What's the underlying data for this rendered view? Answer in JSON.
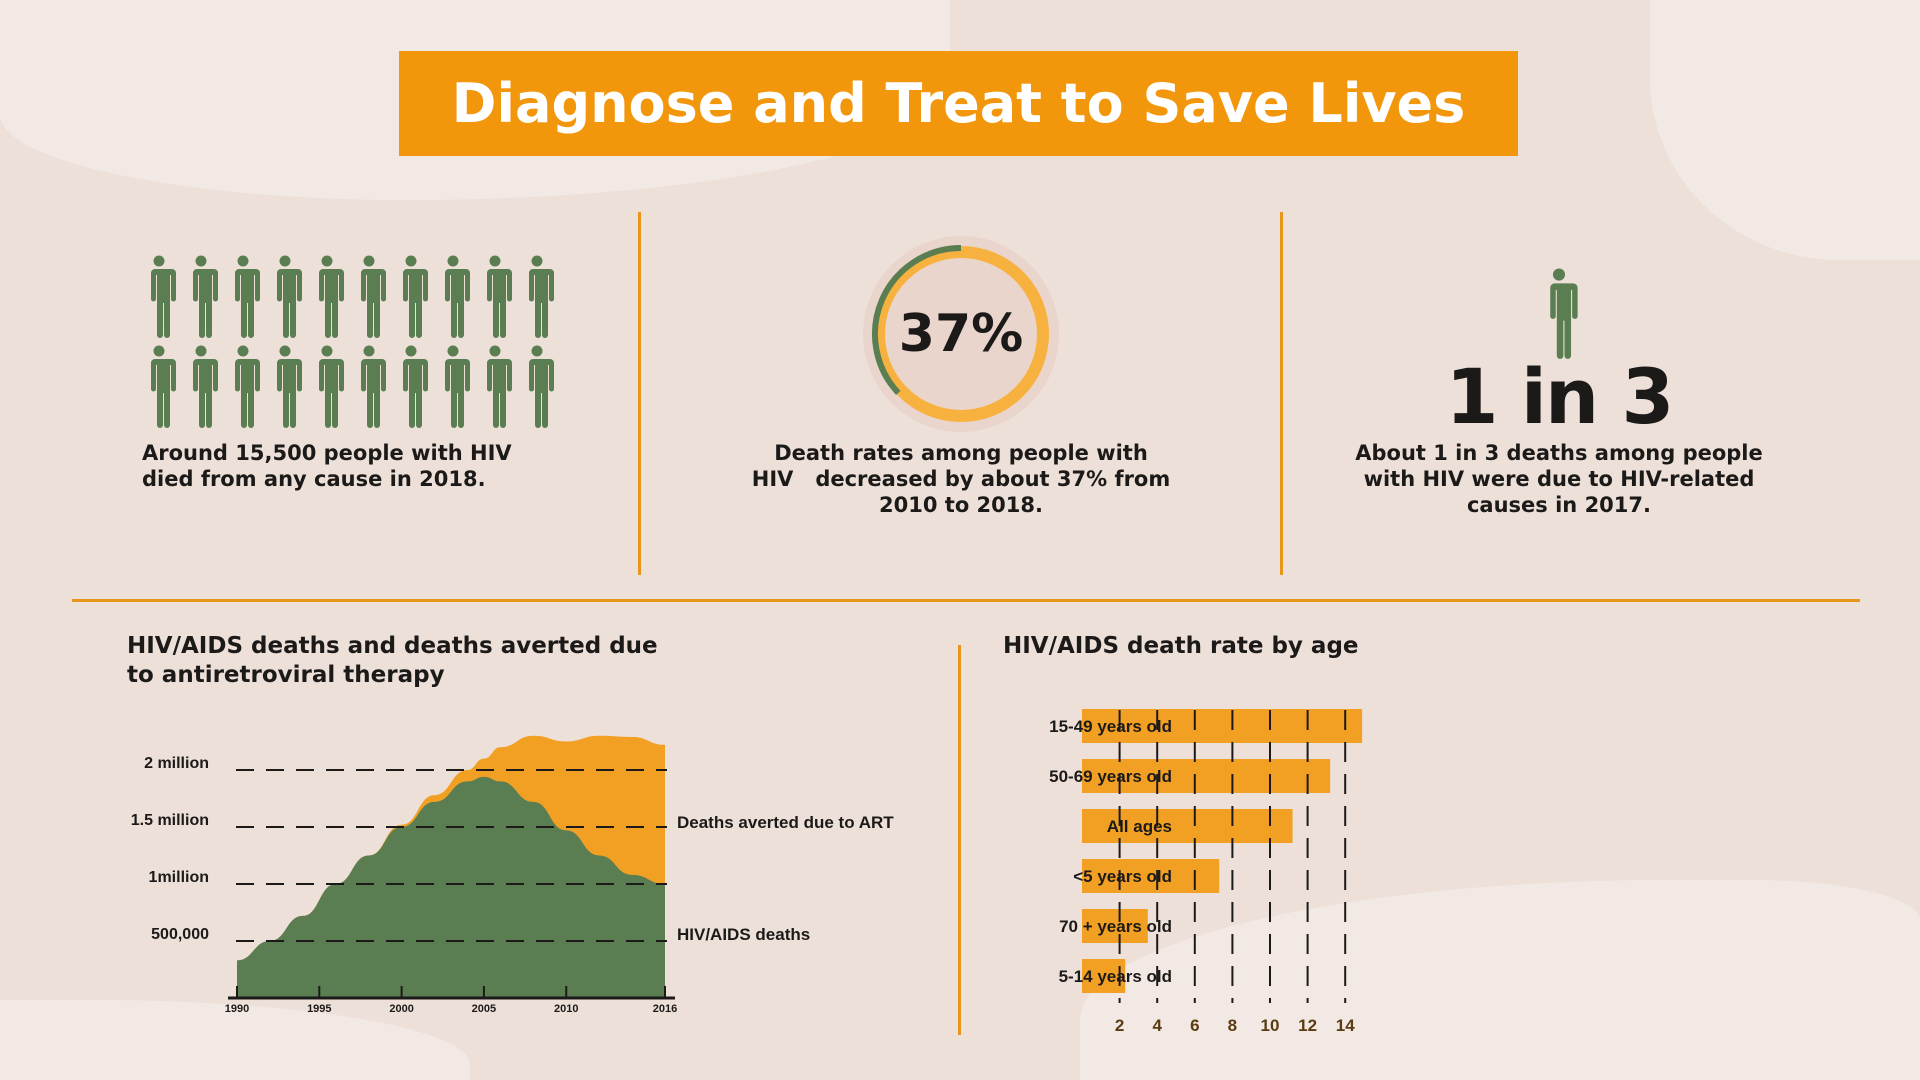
{
  "title": "Diagnose and Treat to Save Lives",
  "colors": {
    "orange": "#f2960c",
    "bar_orange": "#f2a024",
    "green": "#5a7d52",
    "background": "#ede0d9"
  },
  "stats": [
    {
      "icon": "people-icon-grid",
      "icon_count": 20,
      "text_lines": [
        "Around 15,500 people with HIV",
        "died from any cause in 2018."
      ]
    },
    {
      "value": "37%",
      "fraction": 0.37,
      "text_lines": [
        "Death rates among people with",
        "HIV   decreased by about 37% from",
        "2010 to 2018."
      ]
    },
    {
      "icon": "person-icon",
      "value": "1 in 3",
      "text_lines": [
        "About 1 in 3 deaths among people",
        "with HIV were due to HIV-related",
        "causes in 2017."
      ]
    }
  ],
  "chart_data": [
    {
      "type": "area",
      "stacked": true,
      "title_lines": [
        "HIV/AIDS deaths and deaths averted due",
        "to antiretroviral therapy"
      ],
      "x": [
        1990,
        1992,
        1994,
        1996,
        1998,
        2000,
        2002,
        2004,
        2005,
        2006,
        2008,
        2010,
        2012,
        2014,
        2016
      ],
      "x_ticks": [
        "1990",
        "1995",
        "2000",
        "2005",
        "2010",
        "2016"
      ],
      "y_ticks": [
        {
          "value": 500000,
          "label": "500,000"
        },
        {
          "value": 1000000,
          "label": "1million"
        },
        {
          "value": 1500000,
          "label": "1.5 million"
        },
        {
          "value": 2000000,
          "label": "2 million"
        }
      ],
      "ylim": [
        0,
        2400000
      ],
      "grid": "dashed horizontal",
      "series": [
        {
          "name": "HIV/AIDS deaths",
          "color": "#5a7d52",
          "values": [
            330000,
            500000,
            720000,
            1000000,
            1250000,
            1500000,
            1720000,
            1900000,
            1940000,
            1900000,
            1720000,
            1470000,
            1250000,
            1080000,
            1000000
          ]
        },
        {
          "name": "Deaths averted due to ART",
          "color": "#f2a024",
          "values": [
            0,
            0,
            0,
            0,
            0,
            20000,
            60000,
            100000,
            160000,
            300000,
            580000,
            780000,
            1050000,
            1210000,
            1220000
          ]
        }
      ],
      "legend": "right, labels beside series"
    },
    {
      "type": "bar",
      "orientation": "horizontal",
      "title": "HIV/AIDS death rate by age",
      "categories": [
        "15-49 years old",
        "50-69 years old",
        "All ages",
        "<5 years old",
        "70 + years old",
        "5-14 years old"
      ],
      "values": [
        14.9,
        13.2,
        11.2,
        7.3,
        3.5,
        2.3
      ],
      "x_ticks": [
        2,
        4,
        6,
        8,
        10,
        12,
        14
      ],
      "xlim": [
        0,
        16
      ],
      "grid": "dashed vertical"
    }
  ]
}
